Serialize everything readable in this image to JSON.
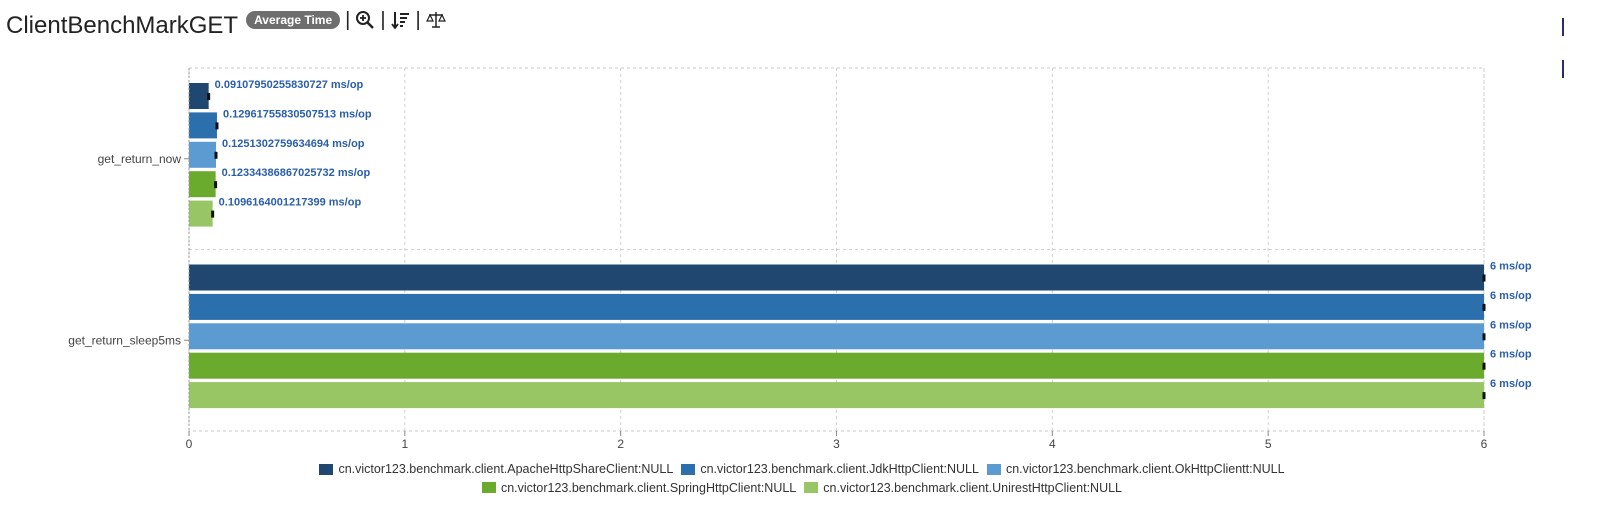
{
  "header": {
    "title": "ClientBenchMarkGET",
    "badge": "Average Time",
    "tools": [
      "zoom-in-icon",
      "sort-icon",
      "compare-balance-icon"
    ]
  },
  "chart_data": {
    "type": "bar",
    "orientation": "horizontal",
    "categories": [
      "get_return_now",
      "get_return_sleep5ms"
    ],
    "xlim": [
      0,
      6
    ],
    "xticks": [
      "0",
      "1",
      "2",
      "3",
      "4",
      "5",
      "6"
    ],
    "unit": "ms/op",
    "grid": true,
    "legend_position": "bottom",
    "series": [
      {
        "name": "cn.victor123.benchmark.client.ApacheHttpShareClient:NULL",
        "color": "#1f4770",
        "values": [
          0.09107950255830727,
          6
        ],
        "labels": [
          "0.09107950255830727 ms/op",
          "6 ms/op"
        ]
      },
      {
        "name": "cn.victor123.benchmark.client.JdkHttpClient:NULL",
        "color": "#2c6fad",
        "values": [
          0.12961755830507513,
          6
        ],
        "labels": [
          "0.12961755830507513 ms/op",
          "6 ms/op"
        ]
      },
      {
        "name": "cn.victor123.benchmark.client.OkHttpClientt:NULL",
        "color": "#5b9bd2",
        "values": [
          0.1251302759634694,
          6
        ],
        "labels": [
          "0.1251302759634694 ms/op",
          "6 ms/op"
        ]
      },
      {
        "name": "cn.victor123.benchmark.client.SpringHttpClient:NULL",
        "color": "#6aaa2c",
        "values": [
          0.12334386867025732,
          6
        ],
        "labels": [
          "0.12334386867025732 ms/op",
          "6 ms/op"
        ]
      },
      {
        "name": "cn.victor123.benchmark.client.UnirestHttpClient:NULL",
        "color": "#98c665",
        "values": [
          0.1096164001217399,
          6
        ],
        "labels": [
          "0.1096164001217399 ms/op",
          "6 ms/op"
        ]
      }
    ]
  }
}
